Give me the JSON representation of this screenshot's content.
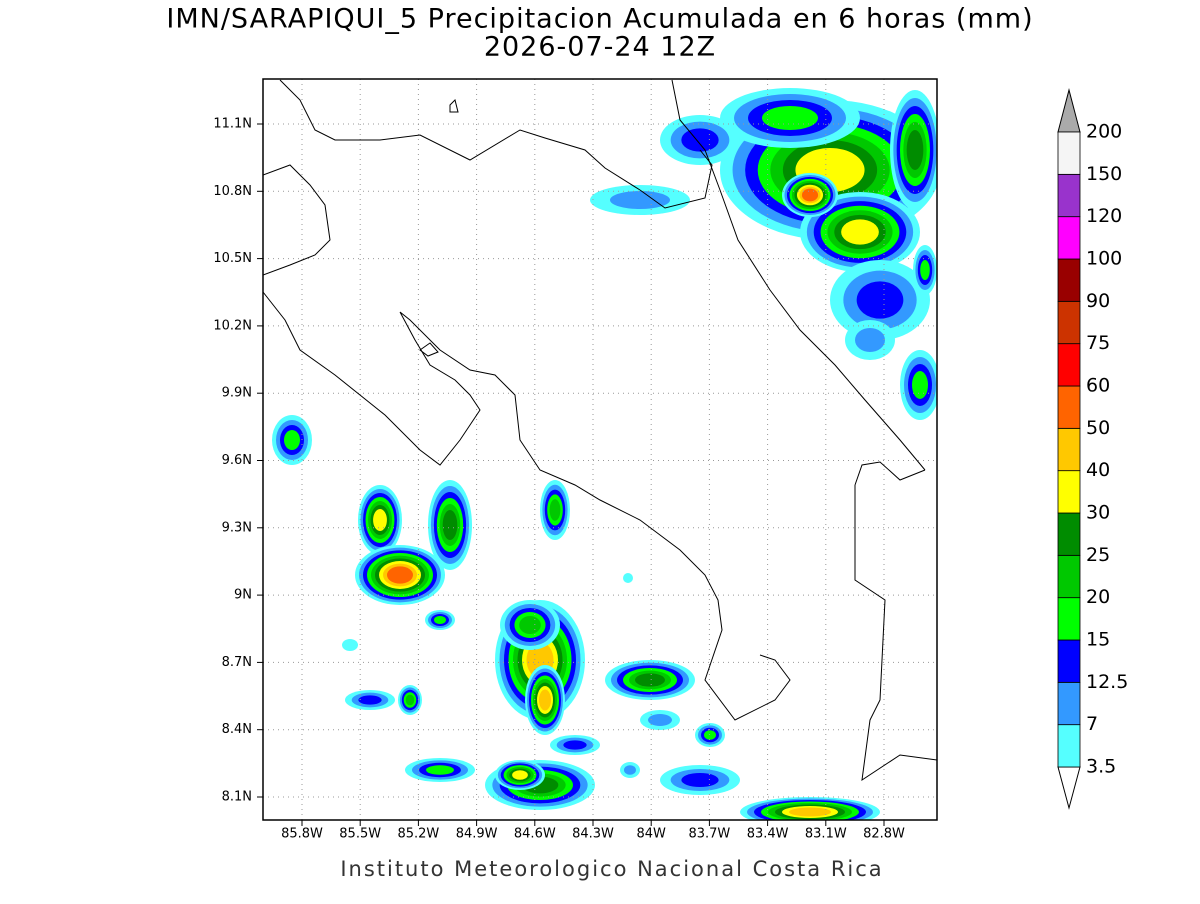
{
  "title": "IMN/SARAPIQUI_5 Precipitacion Acumulada en 6 horas (mm)",
  "subtitle": "2026-07-24 12Z",
  "map": {
    "lon_labels": [
      "85.8W",
      "85.5W",
      "85.2W",
      "84.9W",
      "84.6W",
      "84.3W",
      "84W",
      "83.7W",
      "83.4W",
      "83.1W",
      "82.8W"
    ],
    "lat_labels": [
      "11.1N",
      "10.8N",
      "10.5N",
      "10.2N",
      "9.9N",
      "9.6N",
      "9.3N",
      "9N",
      "8.7N",
      "8.4N",
      "8.1N"
    ]
  },
  "colorbar": {
    "levels": [
      3.5,
      7,
      12.5,
      15,
      20,
      25,
      30,
      40,
      50,
      60,
      75,
      90,
      100,
      120,
      150,
      200
    ],
    "colors": [
      "#55ffff",
      "#3399ff",
      "#0000ff",
      "#00ff00",
      "#00c800",
      "#008c00",
      "#ffff00",
      "#ffc800",
      "#ff6400",
      "#ff0000",
      "#cc3300",
      "#990000",
      "#ff00ff",
      "#9933cc",
      "#f5f5f5"
    ],
    "under_color": "#ffffff",
    "over_color": "#aaaaaa"
  },
  "footer": "Instituto Meteorologico Nacional Costa Rica"
}
